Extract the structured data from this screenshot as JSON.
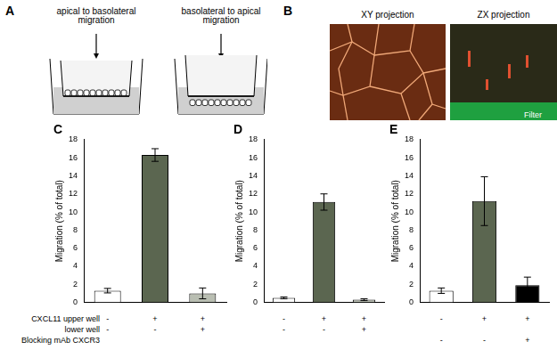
{
  "panels": {
    "A": {
      "label": "A",
      "diagrams": [
        [
          "apical to basolateral",
          "migration"
        ],
        [
          "basolateral to apical",
          "migration"
        ]
      ]
    },
    "B": {
      "label": "B",
      "images": [
        "XY projection",
        "ZX projection"
      ],
      "annotation": "Filter"
    }
  },
  "condition_labels": [
    "CXCL11 upper well",
    "lower well",
    "Blocking mAb CXCR3"
  ],
  "chart_data": [
    {
      "type": "bar",
      "title": "C",
      "categories": [
        null,
        null,
        null
      ],
      "values": [
        1.3,
        16.3,
        1.0
      ],
      "errors": [
        0.25,
        0.7,
        0.6
      ],
      "colors": [
        "#ffffff",
        "#5b6650",
        "#b9beb2"
      ],
      "y_label": "Migration (% of total)",
      "ylim": [
        0,
        18
      ],
      "yticks": [
        0,
        2,
        4,
        6,
        8,
        10,
        12,
        14,
        16,
        18
      ],
      "grid": false,
      "tick_labels": "y",
      "conditions": [
        [
          "-",
          "+",
          "+"
        ],
        [
          "-",
          "-",
          "+"
        ],
        null
      ]
    },
    {
      "type": "bar",
      "title": "D",
      "categories": [
        null,
        null,
        null
      ],
      "values": [
        0.5,
        11.1,
        0.3
      ],
      "errors": [
        0.1,
        0.9,
        0.1
      ],
      "colors": [
        "#ffffff",
        "#5b6650",
        "#b9beb2"
      ],
      "y_label": "Migration (% of total)",
      "ylim": [
        0,
        18
      ],
      "yticks": [
        0,
        2,
        4,
        6,
        8,
        10,
        12,
        14,
        16,
        18
      ],
      "grid": false,
      "tick_labels": "y",
      "conditions": [
        [
          "-",
          "+",
          "+"
        ],
        [
          "-",
          "-",
          "+"
        ],
        null
      ]
    },
    {
      "type": "bar",
      "title": "E",
      "categories": [
        null,
        null,
        null
      ],
      "values": [
        1.3,
        11.2,
        1.9
      ],
      "errors": [
        0.3,
        2.7,
        0.9
      ],
      "colors": [
        "#ffffff",
        "#5b6650",
        "#000000"
      ],
      "y_label": "Migration (% of total)",
      "ylim": [
        0,
        18
      ],
      "yticks": [
        0,
        2,
        4,
        6,
        8,
        10,
        12,
        14,
        16,
        18
      ],
      "grid": false,
      "tick_labels": "y",
      "conditions": [
        [
          "-",
          "+",
          "+"
        ],
        null,
        [
          "-",
          "-",
          "+"
        ]
      ]
    }
  ]
}
